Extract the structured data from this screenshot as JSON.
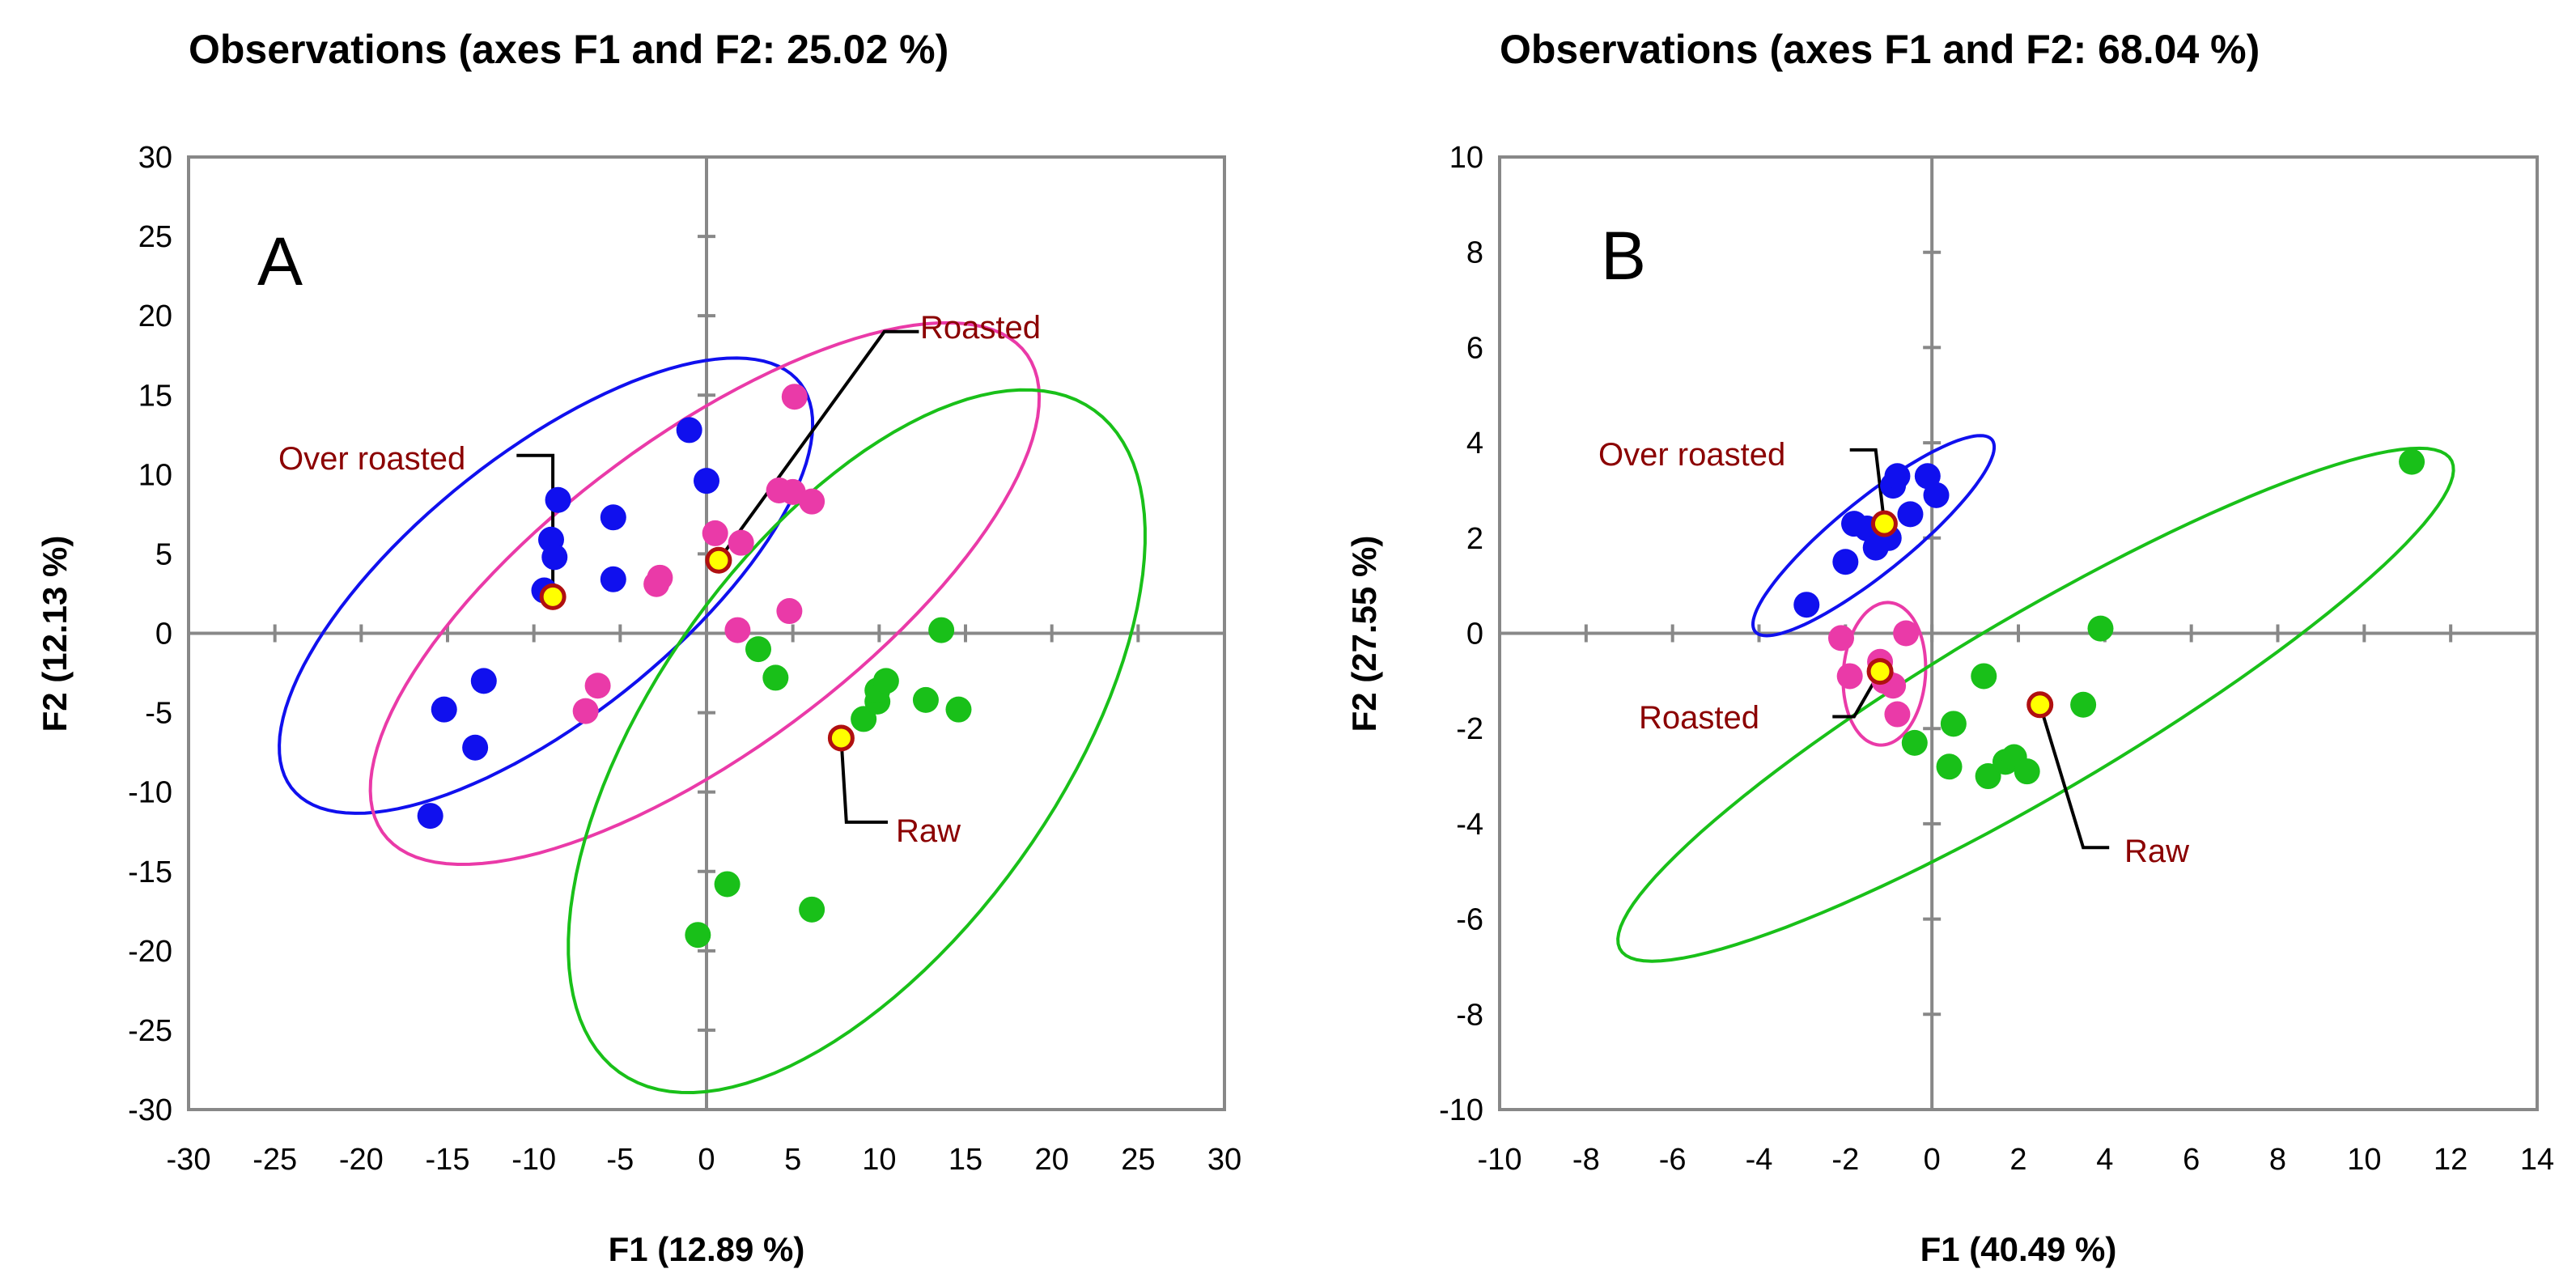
{
  "colors": {
    "over_roasted": "#1010ee",
    "roasted": "#ea3aa8",
    "raw": "#19c019",
    "centroid_fill": "#ffff00",
    "centroid_stroke": "#b01010",
    "label": "#8b0000",
    "axis": "#888888",
    "frame": "#888888"
  },
  "chart_data": [
    {
      "type": "scatter",
      "panel": "A",
      "title": "Observations (axes F1 and F2: 25.02 %)",
      "xlabel": "F1 (12.89 %)",
      "ylabel": "F2 (12.13 %)",
      "xlim": [
        -30,
        30
      ],
      "ylim": [
        -30,
        30
      ],
      "xticks": [
        -30,
        -25,
        -20,
        -15,
        -10,
        -5,
        0,
        5,
        10,
        15,
        20,
        25,
        30
      ],
      "yticks": [
        -30,
        -25,
        -20,
        -15,
        -10,
        -5,
        0,
        5,
        10,
        15,
        20,
        25,
        30
      ],
      "xticklabels": [
        "-30",
        "-25",
        "-20",
        "-15",
        "-10",
        "-5",
        "0",
        "5",
        "10",
        "15",
        "20",
        "25",
        "30"
      ],
      "yticklabels": [
        "-30",
        "-25",
        "-20",
        "-15",
        "-10",
        "-5",
        "0",
        "5",
        "10",
        "15",
        "20",
        "25",
        "30"
      ],
      "series": [
        {
          "name": "Over roasted",
          "color_key": "over_roasted",
          "points": [
            [
              -16,
              -11.5
            ],
            [
              -15.2,
              -4.8
            ],
            [
              -13.4,
              -7.2
            ],
            [
              -12.9,
              -3
            ],
            [
              -9.4,
              2.7
            ],
            [
              -9,
              5.9
            ],
            [
              -8.8,
              4.8
            ],
            [
              -8.6,
              8.4
            ],
            [
              -5.4,
              7.3
            ],
            [
              -5.4,
              3.4
            ],
            [
              -1,
              12.8
            ],
            [
              0,
              9.6
            ]
          ],
          "centroid": [
            -8.9,
            2.3
          ],
          "ellipse": {
            "cx": -9.3,
            "cy": 3,
            "angle": 42,
            "a": 19.5,
            "b": 8
          }
        },
        {
          "name": "Roasted",
          "color_key": "roasted",
          "points": [
            [
              -7,
              -4.9
            ],
            [
              -6.3,
              -3.3
            ],
            [
              -2.9,
              3.1
            ],
            [
              -2.7,
              3.5
            ],
            [
              0.5,
              6.3
            ],
            [
              1.8,
              0.2
            ],
            [
              2,
              5.7
            ],
            [
              4.2,
              9
            ],
            [
              4.8,
              1.4
            ],
            [
              5,
              8.9
            ],
            [
              5.1,
              14.9
            ],
            [
              6.1,
              8.3
            ]
          ],
          "centroid": [
            0.7,
            4.6
          ],
          "ellipse": {
            "cx": -0.1,
            "cy": 2.5,
            "angle": 40,
            "a": 24,
            "b": 9.5
          }
        },
        {
          "name": "Raw",
          "color_key": "raw",
          "points": [
            [
              -0.5,
              -19
            ],
            [
              1.2,
              -15.8
            ],
            [
              3,
              -1
            ],
            [
              4,
              -2.8
            ],
            [
              6.1,
              -17.4
            ],
            [
              9.1,
              -5.4
            ],
            [
              9.9,
              -4.3
            ],
            [
              9.9,
              -3.6
            ],
            [
              10.4,
              -3
            ],
            [
              12.7,
              -4.2
            ],
            [
              13.6,
              0.2
            ],
            [
              14.6,
              -4.8
            ]
          ],
          "centroid": [
            7.8,
            -6.6
          ],
          "ellipse": {
            "cx": 8.7,
            "cy": -6.8,
            "angle": 58,
            "a": 25,
            "b": 12
          }
        }
      ],
      "annotations": [
        "Over roasted",
        "Roasted",
        "Raw"
      ],
      "panel_label": "A"
    },
    {
      "type": "scatter",
      "panel": "B",
      "title": "Observations (axes F1 and F2: 68.04 %)",
      "xlabel": "F1 (40.49 %)",
      "ylabel": "F2 (27.55 %)",
      "xlim": [
        -10,
        14
      ],
      "ylim": [
        -10,
        10
      ],
      "xticks": [
        -10,
        -8,
        -6,
        -4,
        -2,
        0,
        2,
        4,
        6,
        8,
        10,
        12,
        14
      ],
      "yticks": [
        -10,
        -8,
        -6,
        -4,
        -2,
        0,
        2,
        4,
        6,
        8,
        10
      ],
      "xticklabels": [
        "-10",
        "-8",
        "-6",
        "-4",
        "-2",
        "0",
        "2",
        "4",
        "6",
        "8",
        "10",
        "12",
        "14"
      ],
      "yticklabels": [
        "-10",
        "-8",
        "-6",
        "-4",
        "-2",
        "0",
        "2",
        "4",
        "6",
        "8",
        "10"
      ],
      "series": [
        {
          "name": "Over roasted",
          "color_key": "over_roasted",
          "points": [
            [
              -2.9,
              0.6
            ],
            [
              -2,
              1.5
            ],
            [
              -1.8,
              2.3
            ],
            [
              -1.5,
              2.2
            ],
            [
              -1.3,
              1.8
            ],
            [
              -1,
              2
            ],
            [
              -0.9,
              3.1
            ],
            [
              -0.8,
              3.3
            ],
            [
              -0.5,
              2.5
            ],
            [
              -0.1,
              3.3
            ],
            [
              0.1,
              2.9
            ]
          ],
          "centroid": [
            -1.1,
            2.3
          ],
          "ellipse": {
            "cx": -1.35,
            "cy": 2.05,
            "angle": 36,
            "a": 3.4,
            "b": 0.8
          }
        },
        {
          "name": "Roasted",
          "color_key": "roasted",
          "points": [
            [
              -2.1,
              -0.1
            ],
            [
              -1.9,
              -0.9
            ],
            [
              -1.2,
              -0.6
            ],
            [
              -1.1,
              -1
            ],
            [
              -0.9,
              -1.1
            ],
            [
              -0.8,
              -1.7
            ],
            [
              -0.6,
              0
            ]
          ],
          "centroid": [
            -1.2,
            -0.8
          ],
          "ellipse": {
            "cx": -1.1,
            "cy": -0.85,
            "angle": 85,
            "a": 1.5,
            "b": 0.95
          }
        },
        {
          "name": "Raw",
          "color_key": "raw",
          "points": [
            [
              -0.4,
              -2.3
            ],
            [
              0.4,
              -2.8
            ],
            [
              0.5,
              -1.9
            ],
            [
              1.2,
              -0.9
            ],
            [
              1.3,
              -3
            ],
            [
              1.7,
              -2.7
            ],
            [
              1.9,
              -2.6
            ],
            [
              2.2,
              -2.9
            ],
            [
              3.5,
              -1.5
            ],
            [
              3.9,
              0.1
            ],
            [
              11.1,
              3.6
            ]
          ],
          "centroid": [
            2.5,
            -1.5
          ],
          "ellipse": {
            "cx": 2.4,
            "cy": -1.5,
            "angle": 28,
            "a": 10.9,
            "b": 1.9
          }
        }
      ],
      "annotations": [
        "Over roasted",
        "Roasted",
        "Raw"
      ],
      "panel_label": "B"
    }
  ]
}
